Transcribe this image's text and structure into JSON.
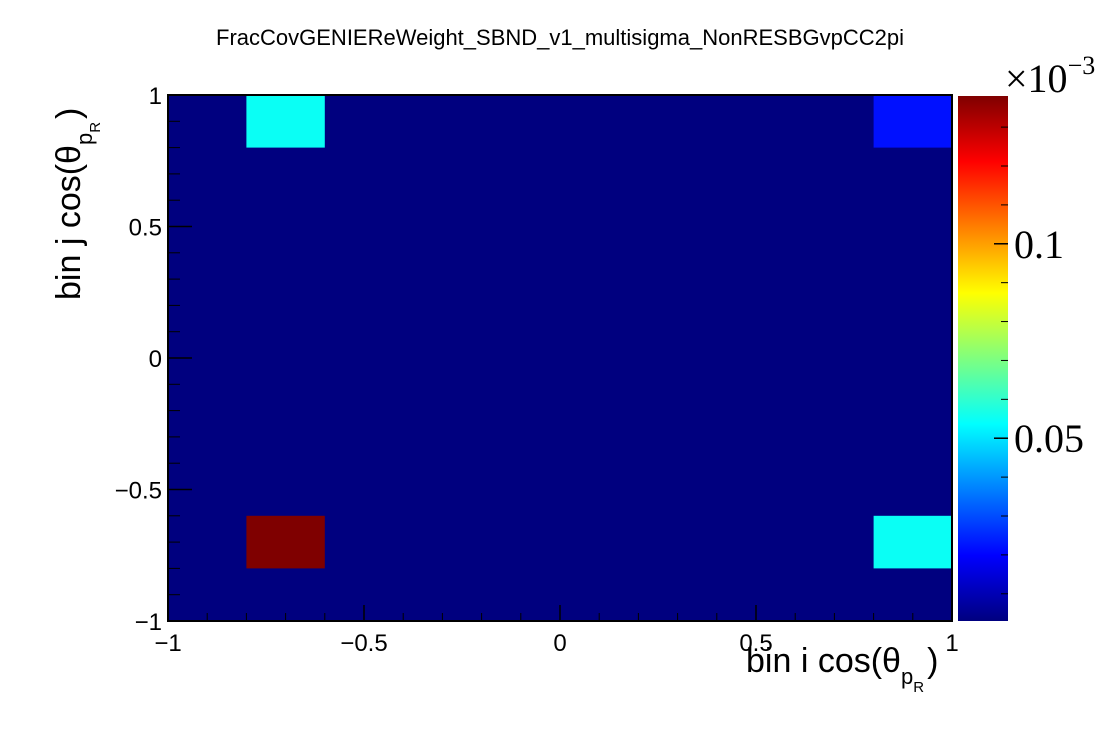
{
  "chart_data": {
    "type": "heatmap",
    "title": "FracCovGENIEReWeight_SBND_v1_multisigma_NonRESBGvpCC2pi",
    "xlabel": {
      "main": "bin i cos(θ",
      "sub": "p",
      "subsub": "R",
      "close": ")"
    },
    "ylabel": {
      "main": "bin j cos(θ",
      "sub": "p",
      "subsub": "R",
      "close": ")"
    },
    "xlim": [
      -1,
      1
    ],
    "ylim": [
      -1,
      1
    ],
    "xticks": [
      "−1",
      "−0.5",
      "0",
      "0.5",
      "1"
    ],
    "xtick_values": [
      -1,
      -0.5,
      0,
      0.5,
      1
    ],
    "yticks": [
      "−1",
      "−0.5",
      "0",
      "0.5",
      "1"
    ],
    "ytick_values": [
      -1,
      -0.5,
      0,
      0.5,
      1
    ],
    "zlim": [
      0.003,
      0.138
    ],
    "z_multiplier": "×10",
    "z_exponent": "−3",
    "zticks": [
      "0.1",
      "0.05"
    ],
    "ztick_values": [
      0.1,
      0.05
    ],
    "background_value": 0.003,
    "cells": [
      {
        "x0": -0.8,
        "x1": -0.6,
        "y0": 0.8,
        "y1": 1.0,
        "z": 0.055
      },
      {
        "x0": 0.8,
        "x1": 1.0,
        "y0": 0.8,
        "y1": 1.0,
        "z": 0.022
      },
      {
        "x0": -0.8,
        "x1": -0.6,
        "y0": -0.8,
        "y1": -0.6,
        "z": 0.138
      },
      {
        "x0": 0.8,
        "x1": 1.0,
        "y0": -0.8,
        "y1": -0.6,
        "z": 0.055
      }
    ],
    "colormap": [
      "#00007f",
      "#0000ff",
      "#007fff",
      "#00ffff",
      "#7fff7f",
      "#ffff00",
      "#ff7f00",
      "#ff0000",
      "#7f0000"
    ],
    "grid": false,
    "legend": "colorbar-right"
  }
}
